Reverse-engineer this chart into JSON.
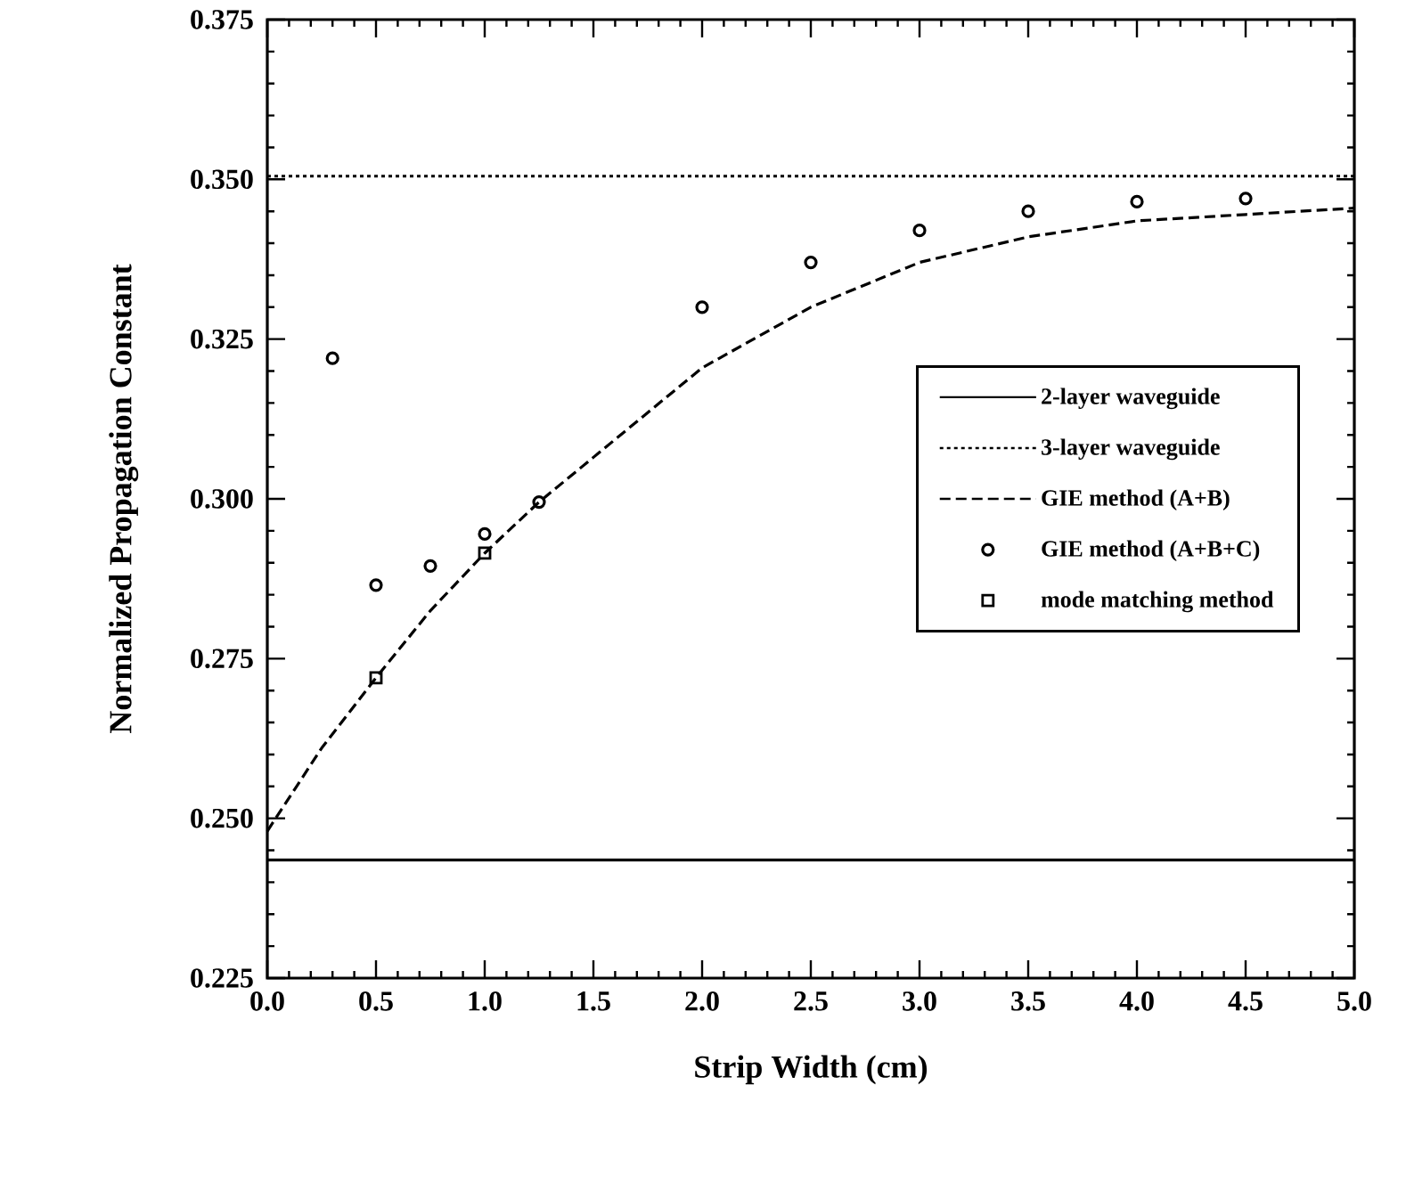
{
  "chart_data": {
    "type": "line",
    "xlabel": "Strip Width (cm)",
    "ylabel": "Normalized Propagation Constant",
    "xlim": [
      0,
      5
    ],
    "ylim": [
      0.225,
      0.375
    ],
    "xticks": [
      {
        "value": 0,
        "label": "0.0"
      },
      {
        "value": 0.5,
        "label": "0.5"
      },
      {
        "value": 1,
        "label": "1.0"
      },
      {
        "value": 1.5,
        "label": "1.5"
      },
      {
        "value": 2,
        "label": "2.0"
      },
      {
        "value": 2.5,
        "label": "2.5"
      },
      {
        "value": 3,
        "label": "3.0"
      },
      {
        "value": 3.5,
        "label": "3.5"
      },
      {
        "value": 4,
        "label": "4.0"
      },
      {
        "value": 4.5,
        "label": "4.5"
      },
      {
        "value": 5,
        "label": "5.0"
      }
    ],
    "yticks": [
      {
        "value": 0.225,
        "label": "0.225"
      },
      {
        "value": 0.25,
        "label": "0.250"
      },
      {
        "value": 0.275,
        "label": "0.275"
      },
      {
        "value": 0.3,
        "label": "0.300"
      },
      {
        "value": 0.325,
        "label": "0.325"
      },
      {
        "value": 0.35,
        "label": "0.350"
      },
      {
        "value": 0.375,
        "label": "0.375"
      }
    ],
    "legend": "right",
    "grid": false,
    "series": [
      {
        "name": "2-layer waveguide",
        "color": "#000000",
        "line_style": "solid",
        "marker": "none",
        "x": [
          0,
          5
        ],
        "values": [
          0.2435,
          0.2435
        ]
      },
      {
        "name": "3-layer waveguide",
        "color": "#000000",
        "line_style": "dotted",
        "marker": "none",
        "x": [
          0,
          5
        ],
        "values": [
          0.3505,
          0.3505
        ]
      },
      {
        "name": "GIE method (A+B)",
        "color": "#000000",
        "line_style": "dashed",
        "marker": "none",
        "x": [
          0,
          0.25,
          0.5,
          0.75,
          1.0,
          1.25,
          1.5,
          2.0,
          2.5,
          3.0,
          3.5,
          4.0,
          4.5,
          5.0
        ],
        "values": [
          0.248,
          0.261,
          0.272,
          0.2825,
          0.2915,
          0.2995,
          0.3065,
          0.3205,
          0.33,
          0.337,
          0.341,
          0.3435,
          0.3445,
          0.3455
        ]
      },
      {
        "name": "GIE method (A+B+C)",
        "type": "scatter",
        "color": "#000000",
        "marker": "circle",
        "x": [
          0.3,
          0.5,
          0.75,
          1.0,
          1.25,
          2.0,
          2.5,
          3.0,
          3.5,
          4.0,
          4.5
        ],
        "values": [
          0.322,
          0.2865,
          0.2895,
          0.2945,
          0.2995,
          0.33,
          0.337,
          0.342,
          0.345,
          0.3465,
          0.347
        ]
      },
      {
        "name": "mode matching method",
        "type": "scatter",
        "color": "#000000",
        "marker": "square",
        "x": [
          0.5,
          1.0
        ],
        "values": [
          0.272,
          0.2915
        ]
      }
    ]
  }
}
